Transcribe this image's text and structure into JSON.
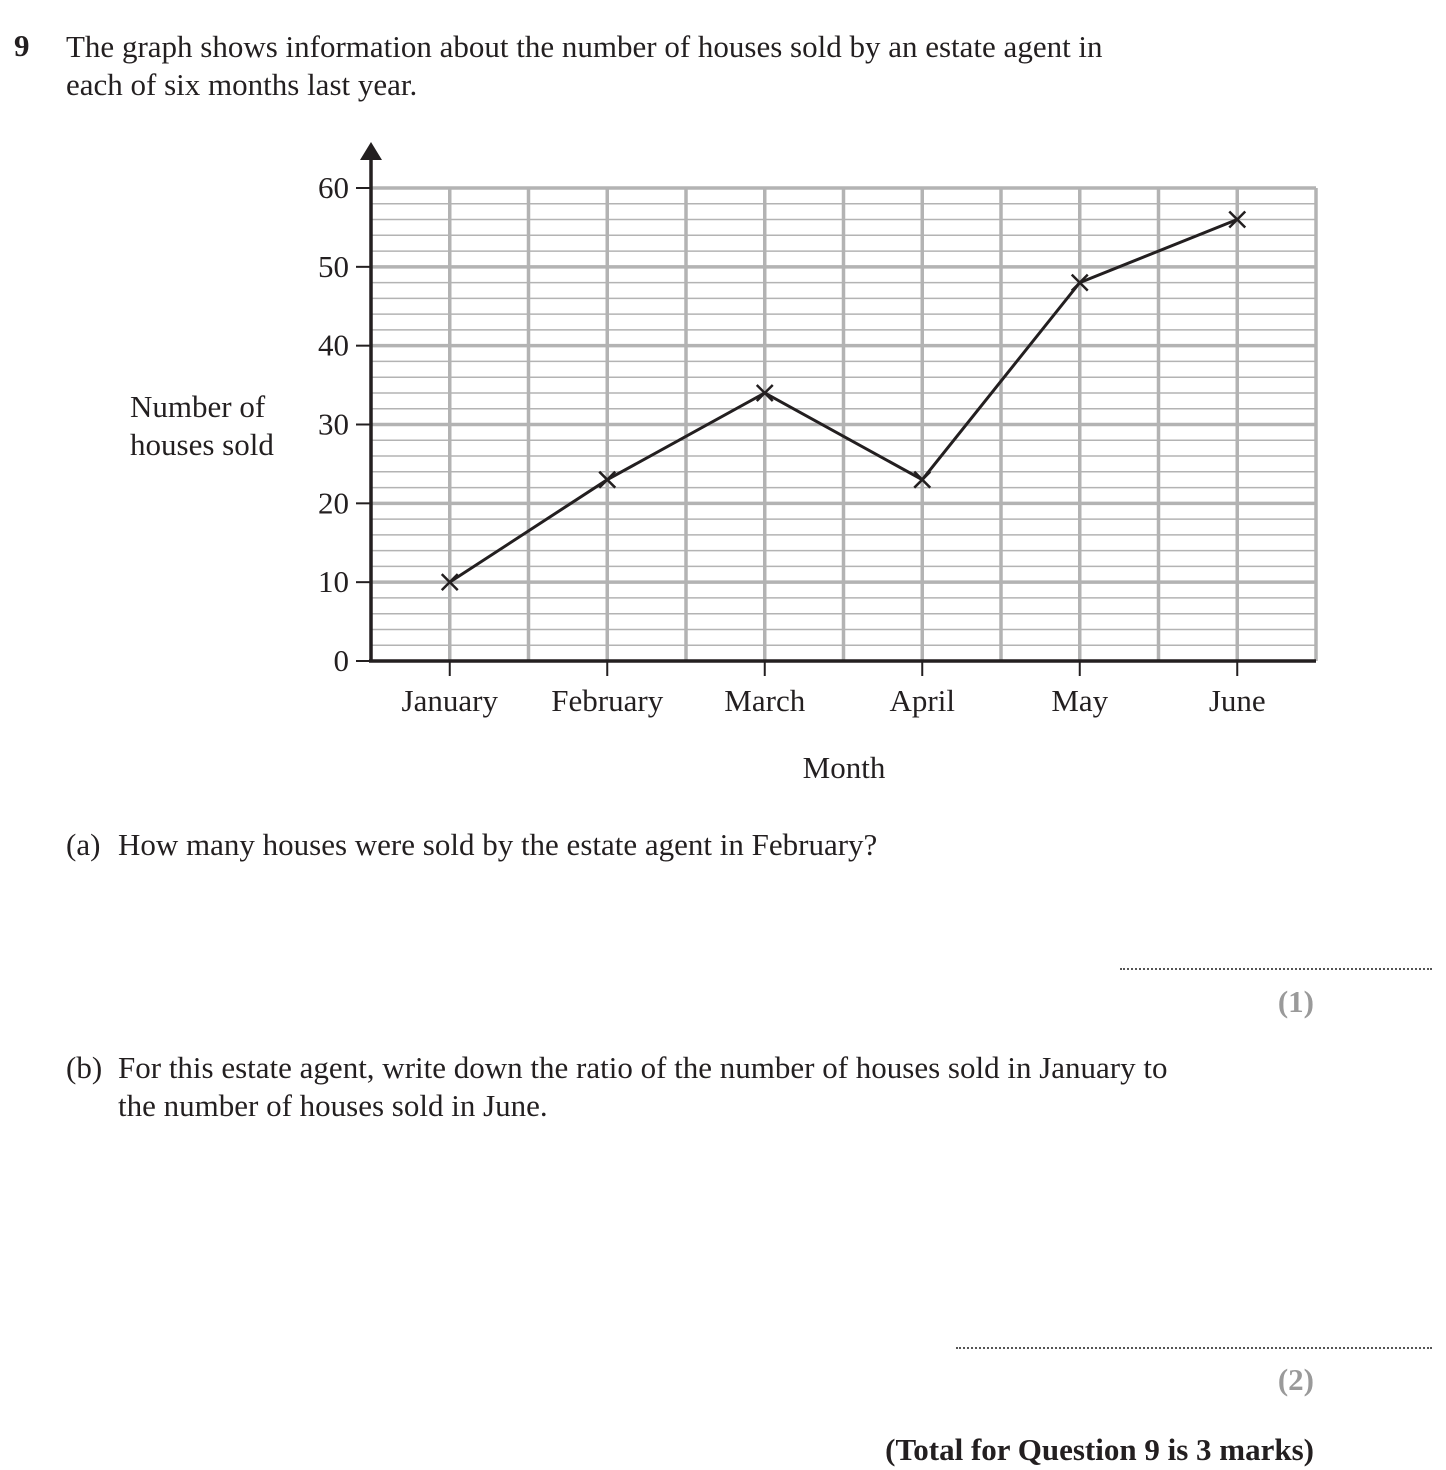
{
  "question": {
    "number": "9",
    "intro_line1": "The graph shows information about the number of houses sold by an estate agent in",
    "intro_line2": "each of six months last year."
  },
  "chart_data": {
    "type": "line",
    "xlabel": "Month",
    "ylabel_line1": "Number of",
    "ylabel_line2": "houses sold",
    "categories": [
      "January",
      "February",
      "March",
      "April",
      "May",
      "June"
    ],
    "series": [
      {
        "values": [
          10,
          23,
          34,
          23,
          48,
          56
        ]
      }
    ],
    "ylim": [
      0,
      60
    ],
    "yticks": [
      0,
      10,
      20,
      30,
      40,
      50,
      60
    ],
    "grid": true,
    "marker": "cross"
  },
  "part_a": {
    "label": "(a)",
    "text": "How many houses were sold by the estate agent in February?",
    "marks": "(1)"
  },
  "part_b": {
    "label": "(b)",
    "text_line1": "For this estate agent, write down the ratio of the number of houses sold in January to",
    "text_line2": "the number of houses sold in June.",
    "marks": "(2)"
  },
  "total": "(Total for Question 9 is 3 marks)",
  "colors": {
    "text": "#231f20",
    "grid": "#b3b3b3",
    "marks": "#9a9a9a"
  }
}
